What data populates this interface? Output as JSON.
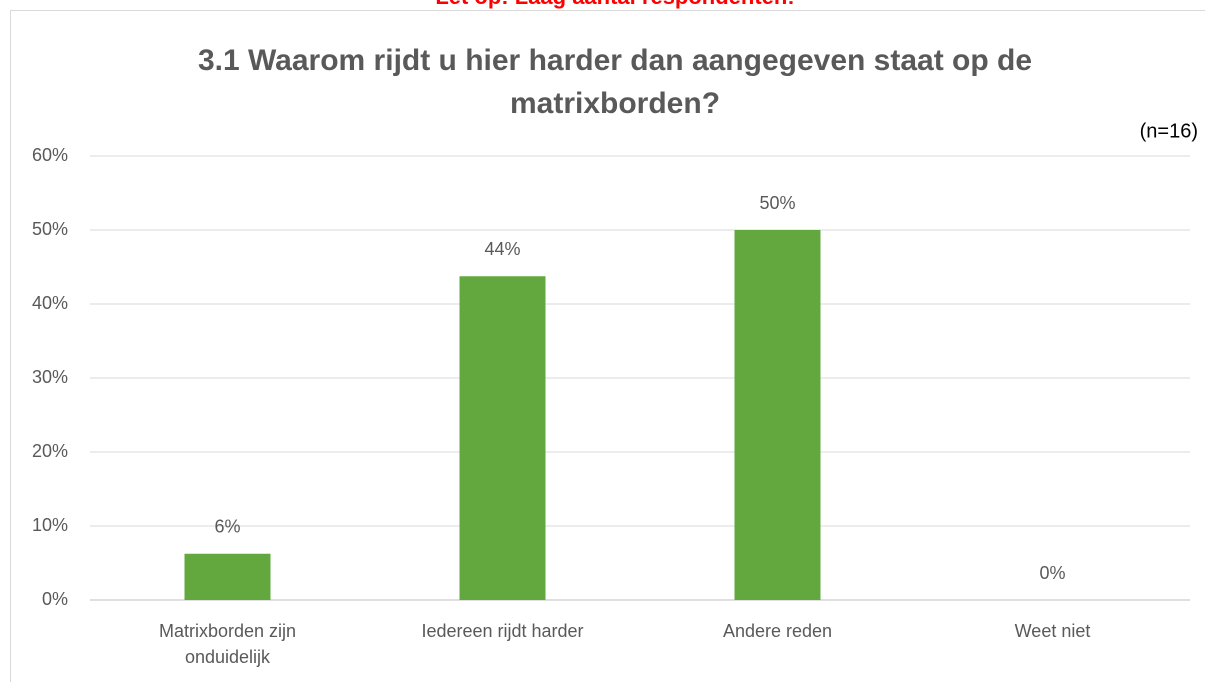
{
  "chart_data": {
    "type": "bar",
    "annotation": "Let op: Laag aantal respondenten!",
    "title": "3.1 Waarom rijdt u hier harder dan aangegeven staat op de matrixborden?",
    "subtitle": "(n=16)",
    "categories": [
      "Matrixborden zijn onduidelijk",
      "Iedereen rijdt harder",
      "Andere reden",
      "Weet niet"
    ],
    "values": [
      6.25,
      43.75,
      50,
      0
    ],
    "value_labels": [
      "6%",
      "44%",
      "50%",
      "0%"
    ],
    "color": "#62a83e",
    "ylim": [
      0,
      60
    ],
    "yticks": [
      {
        "value": 0,
        "label": "0%"
      },
      {
        "value": 10,
        "label": "10%"
      },
      {
        "value": 20,
        "label": "20%"
      },
      {
        "value": 30,
        "label": "30%"
      },
      {
        "value": 40,
        "label": "40%"
      },
      {
        "value": 50,
        "label": "50%"
      },
      {
        "value": 60,
        "label": "60%"
      }
    ],
    "grid": true
  }
}
